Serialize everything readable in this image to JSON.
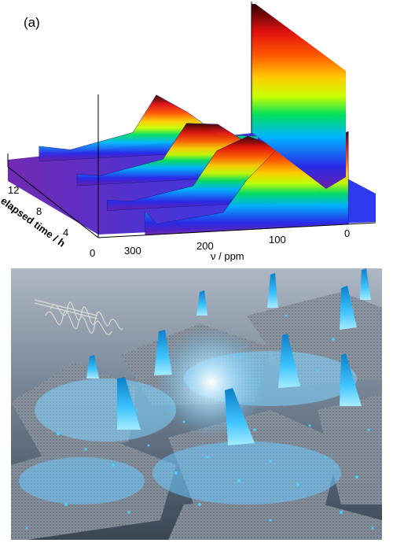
{
  "figure": {
    "panel_label": "(a)"
  },
  "chart_data": {
    "type": "area",
    "title": "",
    "xlabel": "ν / ppm",
    "ylabel": "elapsed time / h",
    "x_ticks": [
      "300",
      "200",
      "100",
      "0"
    ],
    "y_ticks": [
      "0",
      "4",
      "8",
      "12"
    ],
    "xlim": [
      330,
      -25
    ],
    "ylim": [
      0,
      15
    ],
    "colormap": [
      "#6a1fa8",
      "#2a2ae8",
      "#00b4ff",
      "#00e060",
      "#c8ff00",
      "#ffcc00",
      "#ff5a00",
      "#e01010",
      "#300000"
    ],
    "series": [
      {
        "values": [
          {
            "ppm": 290,
            "intensity": 0.1
          },
          {
            "ppm": 250,
            "intensity": 0.04
          },
          {
            "ppm": 170,
            "intensity": 0.2
          },
          {
            "ppm": 140,
            "intensity": 0.62
          },
          {
            "ppm": 100,
            "intensity": 0.4
          },
          {
            "ppm": 60,
            "intensity": 0.12
          },
          {
            "ppm": 10,
            "intensity": 0.08
          }
        ]
      },
      {
        "values": [
          {
            "ppm": 280,
            "intensity": 0.06
          },
          {
            "ppm": 250,
            "intensity": 0.03
          },
          {
            "ppm": 170,
            "intensity": 0.18
          },
          {
            "ppm": 140,
            "intensity": 0.58
          },
          {
            "ppm": 100,
            "intensity": 0.55
          },
          {
            "ppm": 60,
            "intensity": 0.3
          },
          {
            "ppm": 10,
            "intensity": 0.3
          }
        ]
      },
      {
        "values": [
          {
            "ppm": 280,
            "intensity": 0.05
          },
          {
            "ppm": 250,
            "intensity": 0.02
          },
          {
            "ppm": 170,
            "intensity": 0.16
          },
          {
            "ppm": 140,
            "intensity": 0.55
          },
          {
            "ppm": 100,
            "intensity": 0.7
          },
          {
            "ppm": 60,
            "intensity": 0.55
          },
          {
            "ppm": 10,
            "intensity": 0.5
          }
        ]
      },
      {
        "values": [
          {
            "ppm": 270,
            "intensity": 0.2
          },
          {
            "ppm": 255,
            "intensity": 0.05
          },
          {
            "ppm": 170,
            "intensity": 0.14
          },
          {
            "ppm": 140,
            "intensity": 0.5
          },
          {
            "ppm": 100,
            "intensity": 0.85
          },
          {
            "ppm": 60,
            "intensity": 0.8
          },
          {
            "ppm": 10,
            "intensity": 1.0
          }
        ]
      }
    ]
  }
}
